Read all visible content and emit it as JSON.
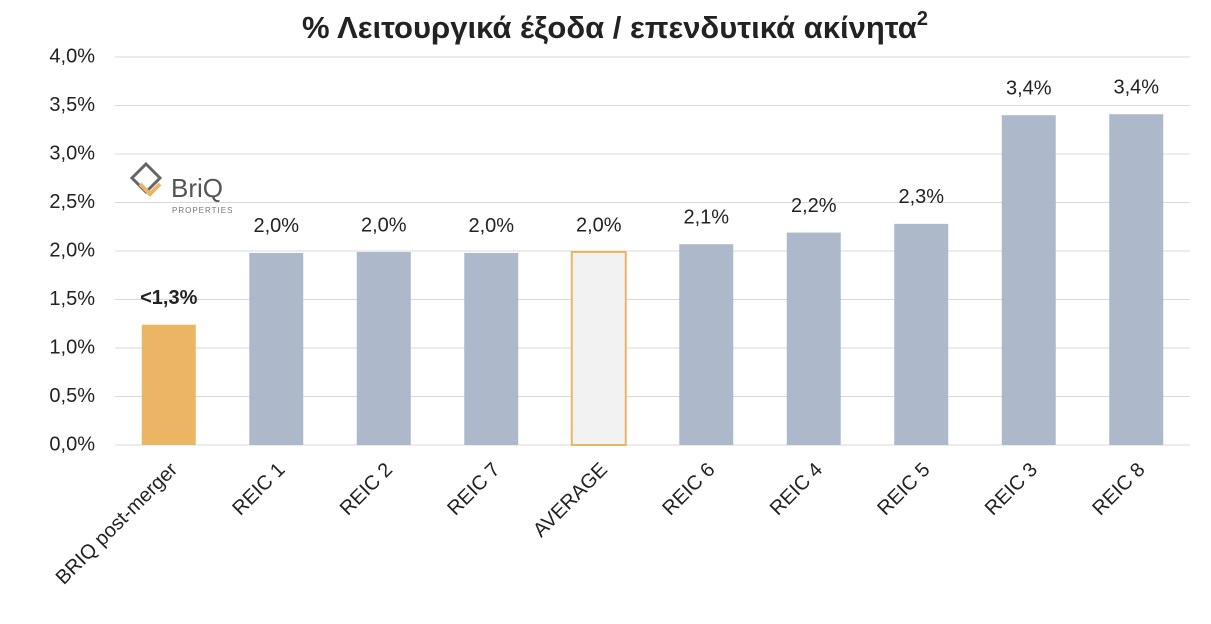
{
  "chart_data": {
    "type": "bar",
    "title": "% Λειτουργικά έξοδα / επενδυτικά ακίνητα",
    "title_superscript": "2",
    "categories": [
      "BRIQ post-merger",
      "REIC 1",
      "REIC 2",
      "REIC 7",
      "AVERAGE",
      "REIC 6",
      "REIC 4",
      "REIC 5",
      "REIC 3",
      "REIC 8"
    ],
    "values": [
      1.24,
      1.98,
      1.99,
      1.98,
      1.99,
      2.07,
      2.19,
      2.28,
      3.4,
      3.41
    ],
    "value_labels": [
      "<1,3%",
      "2,0%",
      "2,0%",
      "2,0%",
      "2,0%",
      "2,1%",
      "2,2%",
      "2,3%",
      "3,4%",
      "3,4%"
    ],
    "label_bold": [
      true,
      false,
      false,
      false,
      false,
      false,
      false,
      false,
      false,
      false
    ],
    "colors": [
      "#ebb563",
      "#adb9ca",
      "#adb9ca",
      "#adb9ca",
      "#f2f2f2",
      "#adb9ca",
      "#adb9ca",
      "#adb9ca",
      "#adb9ca",
      "#adb9ca"
    ],
    "edge_colors": [
      null,
      null,
      null,
      null,
      "#ebb563",
      null,
      null,
      null,
      null,
      null
    ],
    "ylim": [
      0,
      4
    ],
    "yticks": [
      {
        "value": 0,
        "label": "0,0%"
      },
      {
        "value": 0.5,
        "label": "0,5%"
      },
      {
        "value": 1,
        "label": "1,0%"
      },
      {
        "value": 1.5,
        "label": "1,5%"
      },
      {
        "value": 2,
        "label": "2,0%"
      },
      {
        "value": 2.5,
        "label": "2,5%"
      },
      {
        "value": 3,
        "label": "3,0%"
      },
      {
        "value": 3.5,
        "label": "3,5%"
      },
      {
        "value": 4,
        "label": "4,0%"
      }
    ],
    "grid": true
  },
  "logo": {
    "name": "BriQ",
    "tagline": "PROPERTIES"
  }
}
